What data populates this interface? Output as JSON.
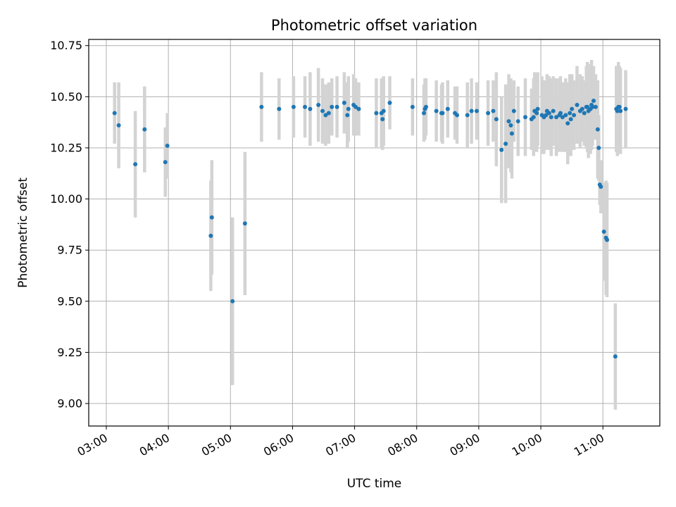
{
  "chart_data": {
    "type": "scatter",
    "title": "Photometric offset variation",
    "xlabel": "UTC time",
    "ylabel": "Photometric offset",
    "xlim": [
      "02:43",
      "11:55"
    ],
    "ylim": [
      8.89,
      10.78
    ],
    "x_ticks": [
      "03:00",
      "04:00",
      "05:00",
      "06:00",
      "07:00",
      "08:00",
      "09:00",
      "10:00",
      "11:00"
    ],
    "y_ticks": [
      "9.00",
      "9.25",
      "9.50",
      "9.75",
      "10.00",
      "10.25",
      "10.50",
      "10.75"
    ],
    "y_tick_values": [
      9.0,
      9.25,
      9.5,
      9.75,
      10.0,
      10.25,
      10.5,
      10.75
    ],
    "grid": true,
    "legend": "none",
    "colors": {
      "point": "#1f77b4",
      "errorbar": "#d3d3d3",
      "grid": "#b0b0b0"
    },
    "series": [
      {
        "x": [
          "03:08",
          "03:12",
          "03:28",
          "03:37",
          "03:57",
          "03:59",
          "04:41",
          "04:42",
          "05:02",
          "05:14",
          "05:30",
          "05:47",
          "06:01",
          "06:12",
          "06:17",
          "06:25",
          "06:29",
          "06:32",
          "06:35",
          "06:38",
          "06:43",
          "06:50",
          "06:53",
          "06:54",
          "06:59",
          "07:01",
          "07:04",
          "07:21",
          "07:26",
          "07:27",
          "07:28",
          "07:34",
          "07:56",
          "08:07",
          "08:08",
          "08:09",
          "08:19",
          "08:24",
          "08:25",
          "08:30",
          "08:37",
          "08:39",
          "08:49",
          "08:53",
          "08:58",
          "09:09",
          "09:14",
          "09:17",
          "09:22",
          "09:26",
          "09:29",
          "09:31",
          "09:32",
          "09:34",
          "09:38",
          "09:45",
          "09:51",
          "09:53",
          "09:54",
          "09:56",
          "09:57",
          "10:01",
          "10:03",
          "10:05",
          "10:06",
          "10:08",
          "10:10",
          "10:12",
          "10:15",
          "10:18",
          "10:19",
          "10:21",
          "10:24",
          "10:26",
          "10:28",
          "10:29",
          "10:30",
          "10:32",
          "10:35",
          "10:38",
          "10:40",
          "10:42",
          "10:44",
          "10:45",
          "10:46",
          "10:48",
          "10:49",
          "10:50",
          "10:51",
          "10:53",
          "10:55",
          "10:56",
          "10:57",
          "10:58",
          "11:01",
          "11:03",
          "11:04",
          "11:12",
          "11:13",
          "11:14",
          "11:15",
          "11:16",
          "11:17",
          "11:22"
        ],
        "y": [
          10.42,
          10.36,
          10.17,
          10.34,
          10.18,
          10.26,
          9.82,
          9.91,
          9.5,
          9.88,
          10.45,
          10.44,
          10.45,
          10.45,
          10.44,
          10.46,
          10.43,
          10.41,
          10.42,
          10.45,
          10.45,
          10.47,
          10.41,
          10.44,
          10.46,
          10.45,
          10.44,
          10.42,
          10.42,
          10.39,
          10.43,
          10.47,
          10.45,
          10.42,
          10.44,
          10.45,
          10.43,
          10.42,
          10.42,
          10.44,
          10.42,
          10.41,
          10.41,
          10.43,
          10.43,
          10.42,
          10.43,
          10.39,
          10.24,
          10.27,
          10.38,
          10.36,
          10.32,
          10.43,
          10.38,
          10.4,
          10.39,
          10.4,
          10.43,
          10.42,
          10.44,
          10.41,
          10.4,
          10.41,
          10.43,
          10.42,
          10.4,
          10.43,
          10.4,
          10.41,
          10.42,
          10.4,
          10.41,
          10.37,
          10.42,
          10.39,
          10.44,
          10.41,
          10.46,
          10.43,
          10.44,
          10.42,
          10.45,
          10.45,
          10.43,
          10.44,
          10.46,
          10.45,
          10.48,
          10.45,
          10.34,
          10.25,
          10.07,
          10.06,
          9.84,
          9.81,
          9.8,
          9.23,
          10.44,
          10.43,
          10.45,
          10.45,
          10.43,
          10.44
        ],
        "yerr": [
          0.15,
          0.21,
          0.26,
          0.21,
          0.17,
          0.16,
          0.27,
          0.28,
          0.41,
          0.35,
          0.17,
          0.15,
          0.15,
          0.15,
          0.18,
          0.18,
          0.16,
          0.15,
          0.15,
          0.14,
          0.15,
          0.15,
          0.16,
          0.16,
          0.15,
          0.14,
          0.13,
          0.17,
          0.17,
          0.15,
          0.17,
          0.13,
          0.14,
          0.14,
          0.15,
          0.14,
          0.15,
          0.14,
          0.15,
          0.14,
          0.13,
          0.14,
          0.16,
          0.16,
          0.14,
          0.16,
          0.15,
          0.23,
          0.26,
          0.29,
          0.23,
          0.23,
          0.22,
          0.15,
          0.17,
          0.19,
          0.15,
          0.19,
          0.19,
          0.19,
          0.18,
          0.19,
          0.18,
          0.17,
          0.18,
          0.18,
          0.19,
          0.17,
          0.19,
          0.18,
          0.18,
          0.17,
          0.18,
          0.2,
          0.19,
          0.18,
          0.17,
          0.17,
          0.19,
          0.18,
          0.16,
          0.16,
          0.2,
          0.22,
          0.23,
          0.22,
          0.22,
          0.19,
          0.17,
          0.16,
          0.24,
          0.16,
          0.1,
          0.13,
          0.24,
          0.28,
          0.28,
          0.26,
          0.21,
          0.22,
          0.22,
          0.2,
          0.21,
          0.19
        ]
      }
    ]
  }
}
